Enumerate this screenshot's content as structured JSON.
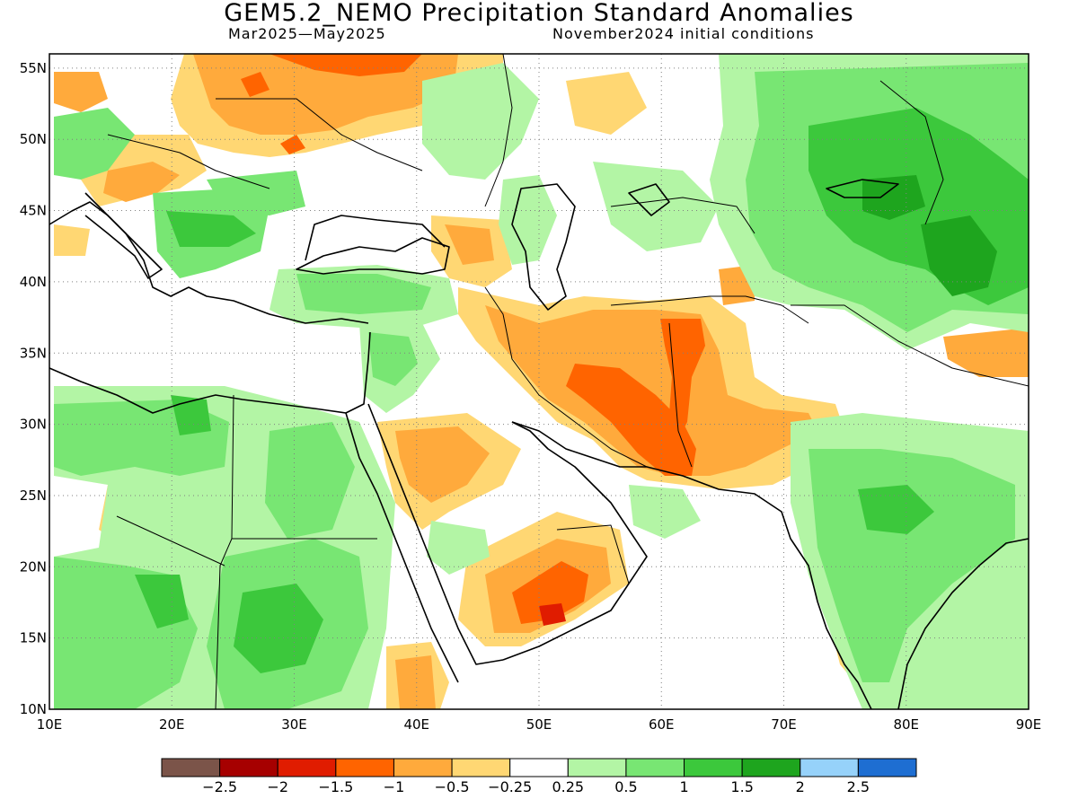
{
  "title": "GEM5.2_NEMO Precipitation Standard Anomalies",
  "subtitle_period": "Mar2025—May2025",
  "subtitle_ic": "November2024 initial conditions",
  "map": {
    "lon_range": [
      10,
      90
    ],
    "lat_range": [
      10,
      56
    ],
    "lon_ticks": [
      "10E",
      "20E",
      "30E",
      "40E",
      "50E",
      "60E",
      "70E",
      "80E",
      "90E"
    ],
    "lat_ticks": [
      "10N",
      "15N",
      "20N",
      "25N",
      "30N",
      "35N",
      "40N",
      "45N",
      "50N",
      "55N"
    ],
    "grid": "dotted",
    "colors": {
      "dry_strong": "#7b5449",
      "dry_3": "#a60000",
      "dry_2": "#e01c00",
      "dry_15": "#ff6400",
      "dry_1": "#ffaa3c",
      "dry_05": "#ffd773",
      "neutral": "#ffffff",
      "wet_025": "#b3f5a5",
      "wet_05": "#78e673",
      "wet_1": "#3cc83c",
      "wet_15": "#1ea51e",
      "wet_2": "#96d2fa",
      "wet_25": "#1e6ed2"
    }
  },
  "colorbar": {
    "colors": [
      "#7b5449",
      "#a60000",
      "#e01c00",
      "#ff6400",
      "#ffaa3c",
      "#ffd773",
      "#ffffff",
      "#b3f5a5",
      "#78e673",
      "#3cc83c",
      "#1ea51e",
      "#96d2fa",
      "#1e6ed2"
    ],
    "labels": [
      "−2.5",
      "−2",
      "−1.5",
      "−1",
      "−0.5",
      "−0.25",
      "0.25",
      "0.5",
      "1",
      "1.5",
      "2",
      "2.5"
    ]
  }
}
